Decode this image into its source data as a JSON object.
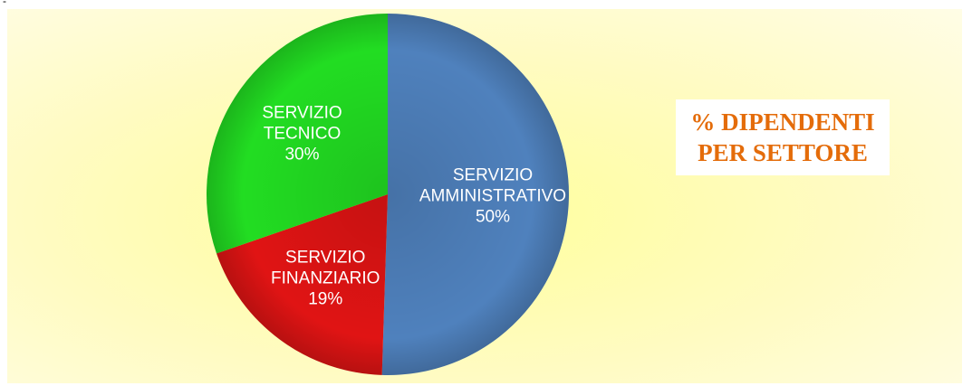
{
  "corner_mark": "-",
  "chart_data": {
    "type": "pie",
    "title": "% DIPENDENTI PER SETTORE",
    "categories": [
      "SERVIZIO AMMINISTRATIVO",
      "SERVIZIO FINANZIARIO",
      "SERVIZIO TECNICO"
    ],
    "values": [
      50,
      19,
      30
    ],
    "value_labels": [
      "50%",
      "19%",
      "30%"
    ],
    "colors": [
      "#4f81bd",
      "#e01414",
      "#22dd22"
    ]
  }
}
